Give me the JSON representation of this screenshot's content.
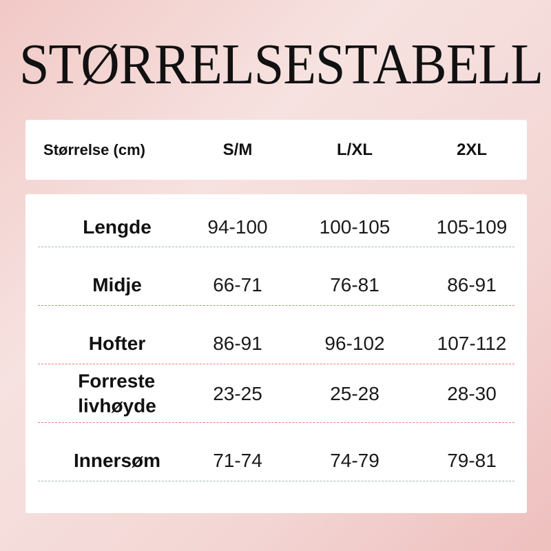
{
  "title": "STØRRELSESTABELL",
  "header": [
    "Størrelse (cm)",
    "S/M",
    "L/XL",
    "2XL"
  ],
  "rows": [
    {
      "label": "Lengde",
      "values": [
        "94-100",
        "100-105",
        "105-109"
      ]
    },
    {
      "label": "Midje",
      "values": [
        "66-71",
        "76-81",
        "86-91"
      ]
    },
    {
      "label": "Hofter",
      "values": [
        "86-91",
        "96-102",
        "107-112"
      ]
    },
    {
      "label": "Forreste\nlivhøyde",
      "values": [
        "23-25",
        "25-28",
        "28-30"
      ]
    },
    {
      "label": "Innersøm",
      "values": [
        "71-74",
        "74-79",
        "79-81"
      ]
    }
  ],
  "colors": {
    "divider": "#f07a6e",
    "background": "#f3d6d4"
  }
}
